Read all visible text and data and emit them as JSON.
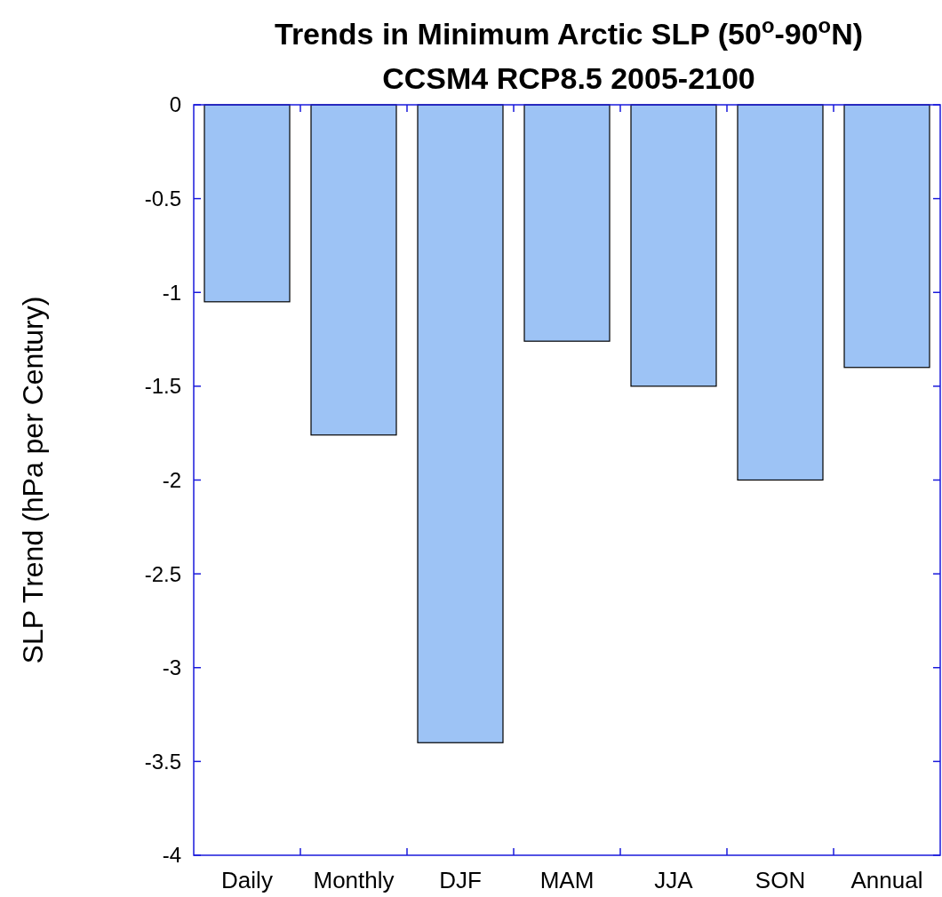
{
  "chart_data": {
    "type": "bar",
    "title": "Trends in Minimum Arctic SLP (50$^{o}$-90$^{o}$N)",
    "subtitle": "CCSM4 RCP8.5 2005-2100",
    "ylabel": "SLP Trend (hPa per Century)",
    "categories": [
      "Daily",
      "Monthly",
      "DJF",
      "MAM",
      "JJA",
      "SON",
      "Annual"
    ],
    "values": [
      -1.05,
      -1.76,
      -3.4,
      -1.26,
      -1.5,
      -2.0,
      -1.4
    ],
    "color": "#9dc3f5",
    "ylim": [
      -4,
      0
    ],
    "yticks": [
      0,
      -0.5,
      -1,
      -1.5,
      -2,
      -2.5,
      -3,
      -3.5,
      -4
    ],
    "grid": false
  }
}
